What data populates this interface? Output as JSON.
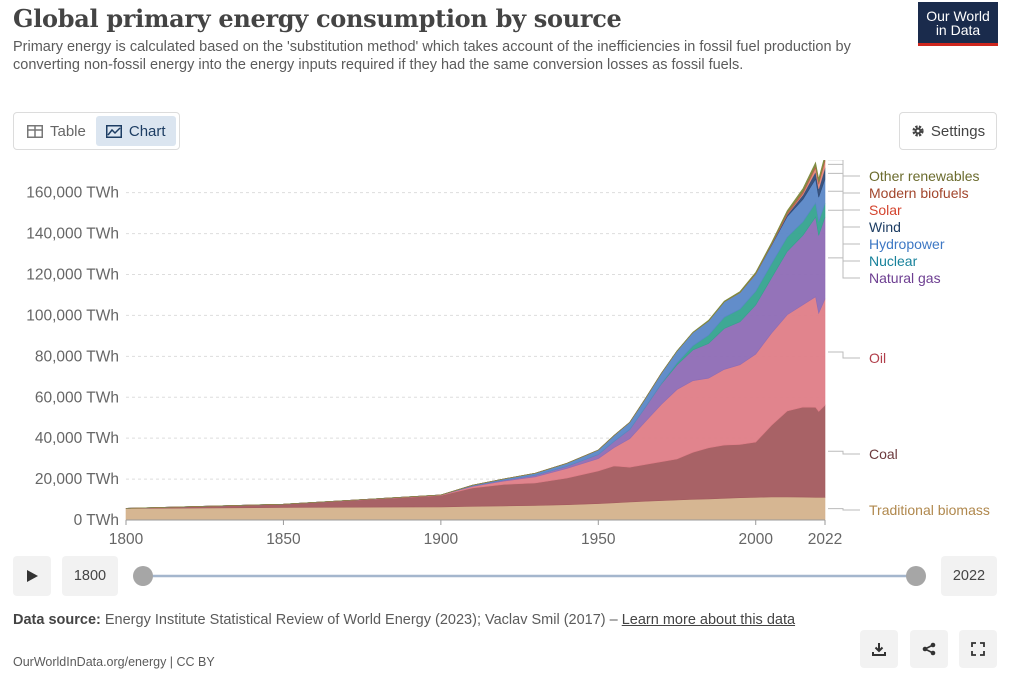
{
  "header": {
    "title": "Global primary energy consumption by source",
    "subtitle": "Primary energy is calculated based on the 'substitution method' which takes account of the inefficiencies in fossil fuel production by converting non-fossil energy into the energy inputs required if they had the same conversion losses as fossil fuels.",
    "logo_line1": "Our World",
    "logo_line2": "in Data"
  },
  "tabs": [
    {
      "label": "Table",
      "icon": "table-icon"
    },
    {
      "label": "Chart",
      "icon": "chart-icon"
    }
  ],
  "settings_label": "Settings",
  "timeline": {
    "start": "1800",
    "end": "2022"
  },
  "footer": {
    "source_label": "Data source:",
    "source_text": "Energy Institute Statistical Review of World Energy (2023); Vaclav Smil (2017) – ",
    "learn_more": "Learn more about this data",
    "credit": "OurWorldInData.org/energy | CC BY"
  },
  "chart_data": {
    "type": "area",
    "stacked": true,
    "title": "Global primary energy consumption by source",
    "ylabel": "",
    "xlim": [
      1800,
      2022
    ],
    "ylim": [
      0,
      175000
    ],
    "y_ticks": [
      0,
      20000,
      40000,
      60000,
      80000,
      100000,
      120000,
      140000,
      160000
    ],
    "y_tick_labels": [
      "0 TWh",
      "20,000 TWh",
      "40,000 TWh",
      "60,000 TWh",
      "80,000 TWh",
      "100,000 TWh",
      "120,000 TWh",
      "140,000 TWh",
      "160,000 TWh"
    ],
    "x_ticks": [
      1800,
      1850,
      1900,
      1950,
      2000,
      2022
    ],
    "x_tick_labels": [
      "1800",
      "1850",
      "1900",
      "1950",
      "2000",
      "2022"
    ],
    "grid": "horizontal",
    "legend": "right",
    "x": [
      1800,
      1850,
      1900,
      1910,
      1920,
      1930,
      1940,
      1950,
      1955,
      1960,
      1965,
      1970,
      1975,
      1980,
      1985,
      1990,
      1995,
      2000,
      2005,
      2010,
      2015,
      2019,
      2020,
      2022
    ],
    "series": [
      {
        "name": "Traditional biomass",
        "color": "#d4b28c",
        "label_color": "#b0884d",
        "values": [
          5600,
          6100,
          6400,
          6700,
          6900,
          7100,
          7500,
          8000,
          8400,
          8800,
          9200,
          9500,
          9800,
          10100,
          10300,
          10600,
          10900,
          11100,
          11300,
          11300,
          11200,
          11100,
          11100,
          11100
        ]
      },
      {
        "name": "Coal",
        "color": "#a35a5e",
        "label_color": "#6c3a3d",
        "values": [
          100,
          1600,
          5600,
          9000,
          10500,
          11000,
          13000,
          16000,
          18000,
          17000,
          18000,
          19000,
          20000,
          23000,
          25000,
          26000,
          26000,
          27000,
          35000,
          42000,
          44000,
          44000,
          42000,
          45000
        ]
      },
      {
        "name": "Oil",
        "color": "#df7d87",
        "label_color": "#b13e4a",
        "values": [
          0,
          0,
          200,
          700,
          1600,
          3000,
          4700,
          6000,
          9000,
          14000,
          21000,
          28000,
          34000,
          35000,
          34000,
          37000,
          39000,
          43000,
          45000,
          47000,
          50000,
          54000,
          48000,
          52000
        ]
      },
      {
        "name": "Natural gas",
        "color": "#8e6cb5",
        "label_color": "#6d3e91",
        "values": [
          0,
          0,
          70,
          300,
          500,
          800,
          1000,
          2000,
          3000,
          4500,
          7000,
          10000,
          12000,
          15000,
          17000,
          20000,
          21000,
          24000,
          27000,
          31000,
          34000,
          39000,
          38000,
          40000
        ]
      },
      {
        "name": "Nuclear",
        "color": "#34a38e",
        "label_color": "#18829b",
        "values": [
          0,
          0,
          0,
          0,
          0,
          0,
          0,
          0,
          0,
          0,
          100,
          200,
          1000,
          2000,
          4000,
          5500,
          6200,
          6700,
          7000,
          7000,
          6600,
          6900,
          6700,
          6700
        ]
      },
      {
        "name": "Hydropower",
        "color": "#5a87c7",
        "label_color": "#3e78c4",
        "values": [
          0,
          0,
          0,
          300,
          600,
          1000,
          1500,
          2200,
          2900,
          3500,
          4200,
          5000,
          5800,
          6500,
          7000,
          7500,
          8000,
          8400,
          9000,
          10000,
          11000,
          11700,
          12000,
          11900
        ]
      },
      {
        "name": "Wind",
        "color": "#2f4b78",
        "label_color": "#1d3d63",
        "values": [
          0,
          0,
          0,
          0,
          0,
          0,
          0,
          0,
          0,
          0,
          0,
          0,
          0,
          0,
          0,
          0,
          0,
          100,
          300,
          900,
          2200,
          3600,
          4100,
          5500
        ]
      },
      {
        "name": "Solar",
        "color": "#e58b7c",
        "label_color": "#d4442e",
        "values": [
          0,
          0,
          0,
          0,
          0,
          0,
          0,
          0,
          0,
          0,
          0,
          0,
          0,
          0,
          0,
          0,
          0,
          0,
          0,
          100,
          700,
          1800,
          2200,
          3300
        ]
      },
      {
        "name": "Modern biofuels",
        "color": "#b8624a",
        "label_color": "#a2462c",
        "values": [
          0,
          0,
          0,
          0,
          0,
          0,
          0,
          0,
          0,
          0,
          0,
          0,
          0,
          0,
          0,
          0,
          100,
          200,
          300,
          1000,
          1100,
          1200,
          1100,
          1200
        ]
      },
      {
        "name": "Other renewables",
        "color": "#7e8a3e",
        "label_color": "#6b6b2d",
        "values": [
          0,
          0,
          0,
          0,
          0,
          0,
          0,
          0,
          0,
          0,
          0,
          0,
          100,
          200,
          300,
          400,
          500,
          600,
          700,
          900,
          1300,
          1500,
          1600,
          1700
        ]
      }
    ]
  }
}
